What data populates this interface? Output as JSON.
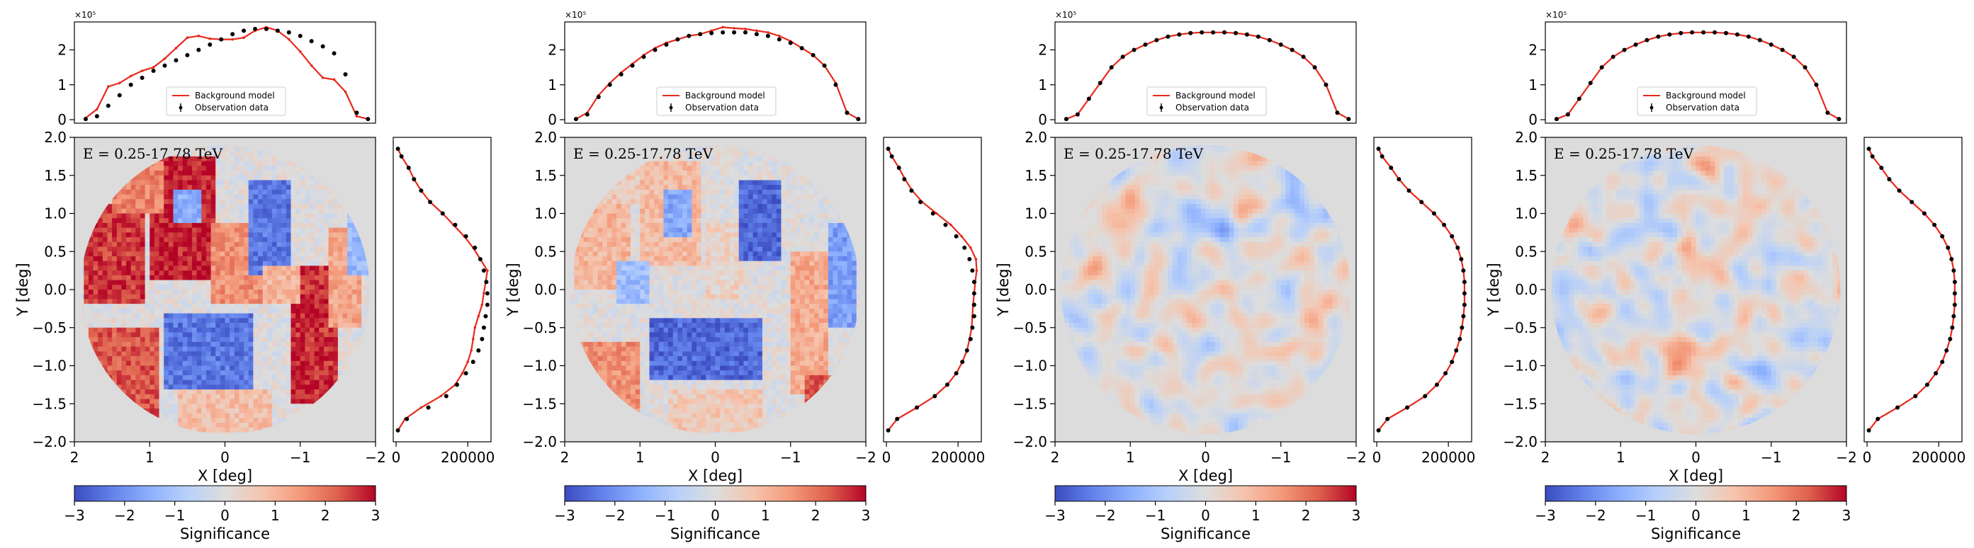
{
  "chart_data": [
    {
      "type": "heatmap",
      "energy_label": "E = 0.25-17.78 TeV",
      "xlabel": "X [deg]",
      "ylabel": "Y [deg]",
      "xlim": [
        2,
        -2
      ],
      "ylim": [
        -2,
        2
      ],
      "x_ticks": [
        "2",
        "1",
        "0",
        "−1",
        "−2"
      ],
      "y_ticks": [
        "−2.0",
        "−1.5",
        "−1.0",
        "−0.5",
        "0.0",
        "0.5",
        "1.0",
        "1.5",
        "2.0"
      ],
      "colorbar": {
        "label": "Significance",
        "range": [
          -3,
          3
        ],
        "ticks": [
          "−3",
          "−2",
          "−1",
          "0",
          "1",
          "2",
          "3"
        ]
      },
      "top_profile": {
        "scale_label": "×10⁵",
        "y_ticks": [
          "0",
          "1",
          "2"
        ],
        "legend": [
          "Background model",
          "Observation data"
        ],
        "x": [
          -1.9,
          -1.75,
          -1.6,
          -1.45,
          -1.3,
          -1.15,
          -1.0,
          -0.85,
          -0.7,
          -0.55,
          -0.4,
          -0.25,
          -0.1,
          0.05,
          0.2,
          0.35,
          0.5,
          0.65,
          0.8,
          0.95,
          1.1,
          1.25,
          1.4,
          1.55,
          1.7,
          1.85
        ],
        "model": [
          0.02,
          0.1,
          0.8,
          1.15,
          1.2,
          1.55,
          1.95,
          2.3,
          2.55,
          2.65,
          2.55,
          2.35,
          2.3,
          2.3,
          2.32,
          2.4,
          2.35,
          2.05,
          1.75,
          1.5,
          1.4,
          1.25,
          1.05,
          0.95,
          0.3,
          0.05
        ],
        "data": [
          0.02,
          0.2,
          1.3,
          1.9,
          2.1,
          2.25,
          2.4,
          2.5,
          2.55,
          2.6,
          2.6,
          2.55,
          2.45,
          2.3,
          2.15,
          2.0,
          1.85,
          1.7,
          1.55,
          1.4,
          1.2,
          1.0,
          0.7,
          0.4,
          0.1,
          0.02
        ]
      },
      "side_profile": {
        "x_ticks": [
          "0",
          "200000"
        ],
        "y": [
          -1.85,
          -1.7,
          -1.55,
          -1.4,
          -1.25,
          -1.1,
          -0.95,
          -0.8,
          -0.65,
          -0.5,
          -0.35,
          -0.2,
          -0.05,
          0.1,
          0.25,
          0.4,
          0.55,
          0.7,
          0.85,
          1.0,
          1.15,
          1.3,
          1.45,
          1.6,
          1.75,
          1.85
        ],
        "model": [
          5000,
          25000,
          70000,
          125000,
          165000,
          185000,
          200000,
          210000,
          215000,
          220000,
          230000,
          240000,
          245000,
          250000,
          255000,
          235000,
          215000,
          190000,
          160000,
          130000,
          95000,
          70000,
          50000,
          35000,
          15000,
          5000
        ],
        "data": [
          5000,
          30000,
          90000,
          140000,
          170000,
          195000,
          215000,
          230000,
          240000,
          245000,
          250000,
          255000,
          255000,
          252000,
          245000,
          235000,
          220000,
          195000,
          165000,
          130000,
          95000,
          70000,
          50000,
          35000,
          15000,
          5000
        ]
      },
      "map_pattern": "blocky-strong"
    },
    {
      "type": "heatmap",
      "energy_label": "E = 0.25-17.78 TeV",
      "xlabel": "X [deg]",
      "ylabel": "Y [deg]",
      "xlim": [
        2,
        -2
      ],
      "ylim": [
        -2,
        2
      ],
      "x_ticks": [
        "2",
        "1",
        "0",
        "−1",
        "−2"
      ],
      "y_ticks": [
        "−2.0",
        "−1.5",
        "−1.0",
        "−0.5",
        "0.0",
        "0.5",
        "1.0",
        "1.5",
        "2.0"
      ],
      "colorbar": {
        "label": "Significance",
        "range": [
          -3,
          3
        ],
        "ticks": [
          "−3",
          "−2",
          "−1",
          "0",
          "1",
          "2",
          "3"
        ]
      },
      "top_profile": {
        "scale_label": "×10⁵",
        "y_ticks": [
          "0",
          "1",
          "2"
        ],
        "legend": [
          "Background model",
          "Observation data"
        ],
        "x": [
          -1.9,
          -1.75,
          -1.6,
          -1.45,
          -1.3,
          -1.15,
          -1.0,
          -0.85,
          -0.7,
          -0.55,
          -0.4,
          -0.25,
          -0.1,
          0.05,
          0.2,
          0.35,
          0.5,
          0.65,
          0.8,
          0.95,
          1.1,
          1.25,
          1.4,
          1.55,
          1.7,
          1.85
        ],
        "model": [
          0.02,
          0.2,
          1.05,
          1.55,
          1.85,
          2.05,
          2.25,
          2.4,
          2.5,
          2.55,
          2.6,
          2.62,
          2.65,
          2.55,
          2.45,
          2.4,
          2.3,
          2.2,
          2.05,
          1.85,
          1.6,
          1.35,
          1.05,
          0.7,
          0.2,
          0.02
        ],
        "data": [
          0.02,
          0.2,
          1.0,
          1.55,
          1.85,
          2.05,
          2.2,
          2.3,
          2.4,
          2.45,
          2.5,
          2.5,
          2.5,
          2.48,
          2.45,
          2.4,
          2.3,
          2.15,
          2.0,
          1.8,
          1.55,
          1.3,
          1.0,
          0.65,
          0.15,
          0.02
        ]
      },
      "side_profile": {
        "x_ticks": [
          "0",
          "200000"
        ],
        "y": [
          -1.85,
          -1.7,
          -1.55,
          -1.4,
          -1.25,
          -1.1,
          -0.95,
          -0.8,
          -0.65,
          -0.5,
          -0.35,
          -0.2,
          -0.05,
          0.1,
          0.25,
          0.4,
          0.55,
          0.7,
          0.85,
          1.0,
          1.15,
          1.3,
          1.45,
          1.6,
          1.75,
          1.85
        ],
        "model": [
          5000,
          30000,
          85000,
          135000,
          170000,
          195000,
          212000,
          225000,
          232000,
          238000,
          240000,
          242000,
          245000,
          248000,
          252000,
          250000,
          235000,
          210000,
          180000,
          140000,
          100000,
          72000,
          52000,
          35000,
          15000,
          5000
        ],
        "data": [
          5000,
          30000,
          85000,
          135000,
          170000,
          195000,
          212000,
          225000,
          235000,
          240000,
          245000,
          245000,
          245000,
          245000,
          240000,
          232000,
          218000,
          195000,
          165000,
          130000,
          95000,
          70000,
          50000,
          35000,
          15000,
          5000
        ]
      },
      "map_pattern": "blocky-medium"
    },
    {
      "type": "heatmap",
      "energy_label": "E = 0.25-17.78 TeV",
      "xlabel": "X [deg]",
      "ylabel": "Y [deg]",
      "xlim": [
        2,
        -2
      ],
      "ylim": [
        -2,
        2
      ],
      "x_ticks": [
        "2",
        "1",
        "0",
        "−1",
        "−2"
      ],
      "y_ticks": [
        "−2.0",
        "−1.5",
        "−1.0",
        "−0.5",
        "0.0",
        "0.5",
        "1.0",
        "1.5",
        "2.0"
      ],
      "colorbar": {
        "label": "Significance",
        "range": [
          -3,
          3
        ],
        "ticks": [
          "−3",
          "−2",
          "−1",
          "0",
          "1",
          "2",
          "3"
        ]
      },
      "top_profile": {
        "scale_label": "×10⁵",
        "y_ticks": [
          "0",
          "1",
          "2"
        ],
        "legend": [
          "Background model",
          "Observation data"
        ],
        "x": [
          -1.9,
          -1.75,
          -1.6,
          -1.45,
          -1.3,
          -1.15,
          -1.0,
          -0.85,
          -0.7,
          -0.55,
          -0.4,
          -0.25,
          -0.1,
          0.05,
          0.2,
          0.35,
          0.5,
          0.65,
          0.8,
          0.95,
          1.1,
          1.25,
          1.4,
          1.55,
          1.7,
          1.85
        ],
        "model": [
          0.02,
          0.2,
          1.0,
          1.5,
          1.8,
          2.0,
          2.15,
          2.28,
          2.38,
          2.44,
          2.48,
          2.5,
          2.5,
          2.5,
          2.48,
          2.44,
          2.38,
          2.28,
          2.15,
          2.0,
          1.8,
          1.5,
          1.05,
          0.6,
          0.15,
          0.02
        ],
        "data": [
          0.02,
          0.2,
          1.0,
          1.5,
          1.8,
          2.0,
          2.15,
          2.28,
          2.38,
          2.44,
          2.48,
          2.5,
          2.5,
          2.5,
          2.48,
          2.44,
          2.38,
          2.28,
          2.15,
          2.0,
          1.8,
          1.5,
          1.05,
          0.6,
          0.15,
          0.02
        ]
      },
      "side_profile": {
        "x_ticks": [
          "0",
          "200000"
        ],
        "y": [
          -1.85,
          -1.7,
          -1.55,
          -1.4,
          -1.25,
          -1.1,
          -0.95,
          -0.8,
          -0.65,
          -0.5,
          -0.35,
          -0.2,
          -0.05,
          0.1,
          0.25,
          0.4,
          0.55,
          0.7,
          0.85,
          1.0,
          1.15,
          1.3,
          1.45,
          1.6,
          1.75,
          1.85
        ],
        "model": [
          5000,
          30000,
          85000,
          135000,
          168000,
          192000,
          210000,
          222000,
          232000,
          238000,
          242000,
          245000,
          245000,
          245000,
          242000,
          236000,
          226000,
          210000,
          188000,
          160000,
          125000,
          90000,
          62000,
          40000,
          15000,
          5000
        ],
        "data": [
          5000,
          30000,
          85000,
          135000,
          168000,
          192000,
          210000,
          222000,
          232000,
          238000,
          242000,
          245000,
          245000,
          245000,
          242000,
          236000,
          226000,
          210000,
          188000,
          160000,
          125000,
          90000,
          62000,
          40000,
          15000,
          5000
        ]
      },
      "map_pattern": "speckle"
    },
    {
      "type": "heatmap",
      "energy_label": "E = 0.25-17.78 TeV",
      "xlabel": "X [deg]",
      "ylabel": "Y [deg]",
      "xlim": [
        2,
        -2
      ],
      "ylim": [
        -2,
        2
      ],
      "x_ticks": [
        "2",
        "1",
        "0",
        "−1",
        "−2"
      ],
      "y_ticks": [
        "−2.0",
        "−1.5",
        "−1.0",
        "−0.5",
        "0.0",
        "0.5",
        "1.0",
        "1.5",
        "2.0"
      ],
      "colorbar": {
        "label": "Significance",
        "range": [
          -3,
          3
        ],
        "ticks": [
          "−3",
          "−2",
          "−1",
          "0",
          "1",
          "2",
          "3"
        ]
      },
      "top_profile": {
        "scale_label": "×10⁵",
        "y_ticks": [
          "0",
          "1",
          "2"
        ],
        "legend": [
          "Background model",
          "Observation data"
        ],
        "x": [
          -1.9,
          -1.75,
          -1.6,
          -1.45,
          -1.3,
          -1.15,
          -1.0,
          -0.85,
          -0.7,
          -0.55,
          -0.4,
          -0.25,
          -0.1,
          0.05,
          0.2,
          0.35,
          0.5,
          0.65,
          0.8,
          0.95,
          1.1,
          1.25,
          1.4,
          1.55,
          1.7,
          1.85
        ],
        "model": [
          0.02,
          0.2,
          1.0,
          1.5,
          1.8,
          2.0,
          2.15,
          2.28,
          2.38,
          2.44,
          2.48,
          2.5,
          2.5,
          2.5,
          2.48,
          2.44,
          2.38,
          2.28,
          2.15,
          2.0,
          1.8,
          1.5,
          1.05,
          0.6,
          0.15,
          0.02
        ],
        "data": [
          0.02,
          0.2,
          1.0,
          1.5,
          1.8,
          2.0,
          2.15,
          2.28,
          2.38,
          2.44,
          2.48,
          2.5,
          2.5,
          2.5,
          2.48,
          2.44,
          2.38,
          2.28,
          2.15,
          2.0,
          1.8,
          1.5,
          1.05,
          0.6,
          0.15,
          0.02
        ]
      },
      "side_profile": {
        "x_ticks": [
          "0",
          "200000"
        ],
        "y": [
          -1.85,
          -1.7,
          -1.55,
          -1.4,
          -1.25,
          -1.1,
          -0.95,
          -0.8,
          -0.65,
          -0.5,
          -0.35,
          -0.2,
          -0.05,
          0.1,
          0.25,
          0.4,
          0.55,
          0.7,
          0.85,
          1.0,
          1.15,
          1.3,
          1.45,
          1.6,
          1.75,
          1.85
        ],
        "model": [
          5000,
          30000,
          85000,
          135000,
          168000,
          192000,
          210000,
          222000,
          232000,
          238000,
          242000,
          245000,
          245000,
          245000,
          242000,
          236000,
          226000,
          210000,
          188000,
          160000,
          125000,
          90000,
          62000,
          40000,
          15000,
          5000
        ],
        "data": [
          5000,
          30000,
          85000,
          135000,
          168000,
          192000,
          210000,
          222000,
          232000,
          238000,
          242000,
          245000,
          245000,
          245000,
          242000,
          236000,
          226000,
          210000,
          188000,
          160000,
          125000,
          90000,
          62000,
          40000,
          15000,
          5000
        ]
      },
      "map_pattern": "speckle"
    }
  ],
  "colors": {
    "model_line": "#e8291c",
    "data_points": "#000000",
    "map_background": "#dcdcdc"
  }
}
